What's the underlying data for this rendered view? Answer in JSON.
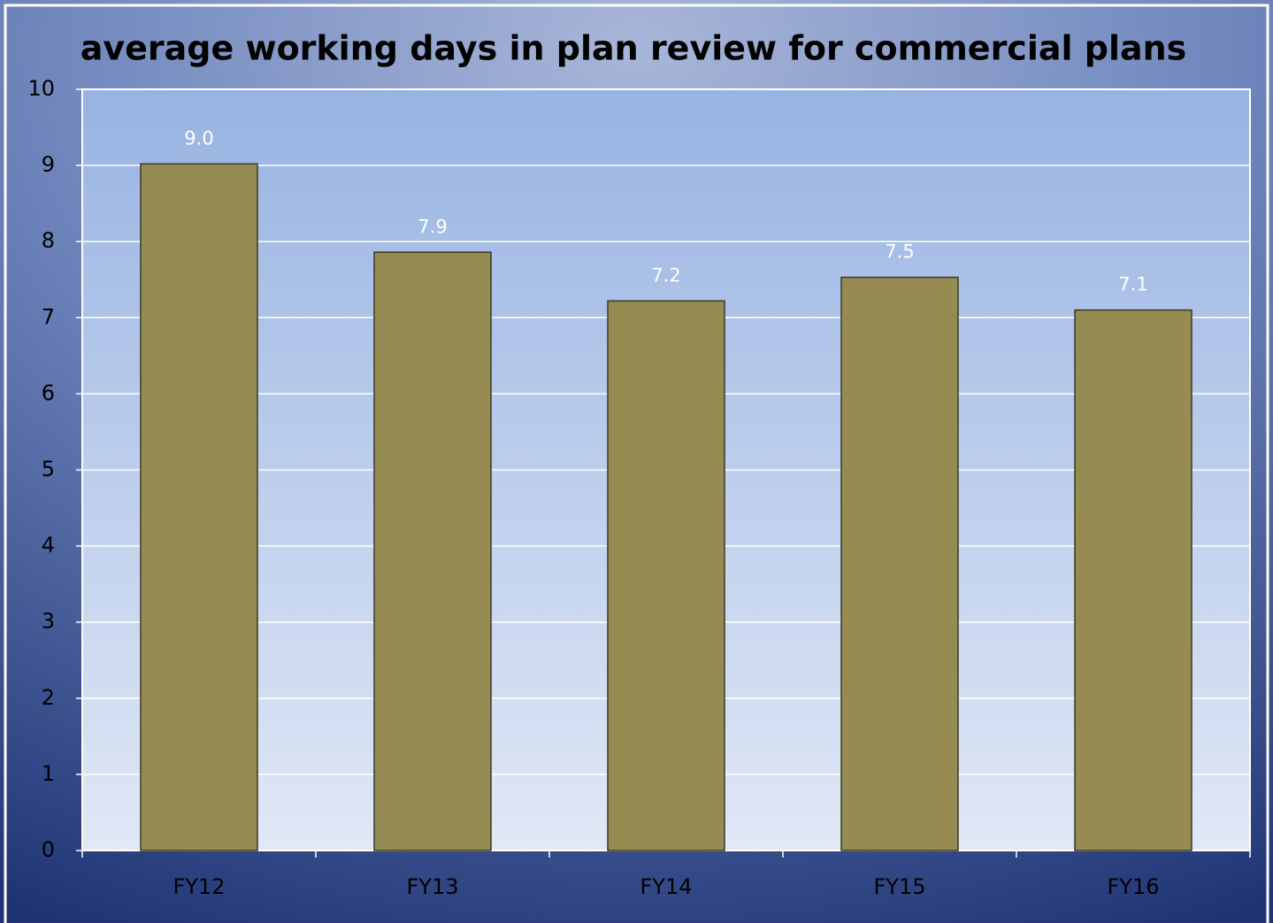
{
  "chart_data": {
    "type": "bar",
    "title": "average working days in plan review for commercial plans",
    "categories": [
      "FY12",
      "FY13",
      "FY14",
      "FY15",
      "FY16"
    ],
    "values": [
      9.02,
      7.86,
      7.22,
      7.53,
      7.1
    ],
    "value_labels": [
      "9.0",
      "7.9",
      "7.2",
      "7.5",
      "7.1"
    ],
    "color": "#968b53",
    "ylim": [
      0,
      10
    ],
    "yticks": [
      0,
      1,
      2,
      3,
      4,
      5,
      6,
      7,
      8,
      9,
      10
    ],
    "grid": true
  }
}
